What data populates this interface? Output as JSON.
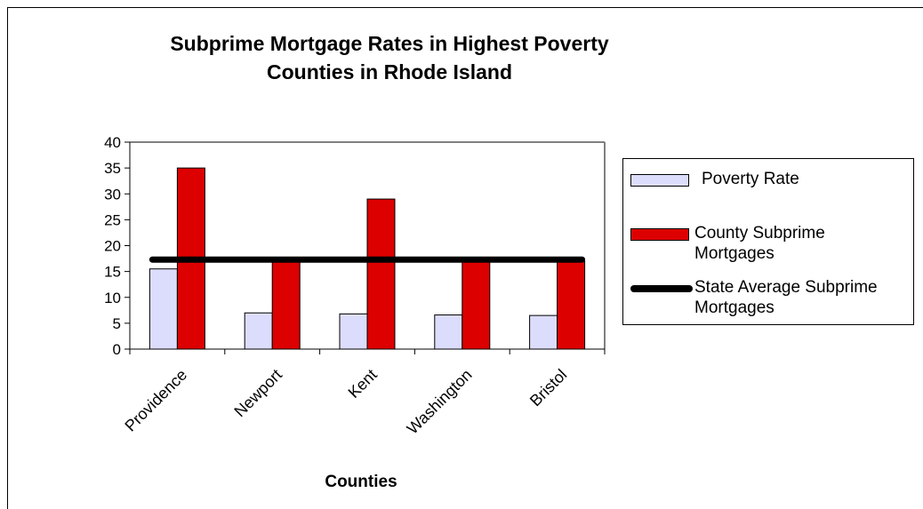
{
  "chart_data": {
    "type": "bar",
    "title_lines": [
      "Subprime Mortgage Rates in Highest Poverty",
      "Counties in Rhode Island"
    ],
    "xlabel": "Counties",
    "ylabel": "",
    "categories": [
      "Providence",
      "Newport",
      "Kent",
      "Washington",
      "Bristol"
    ],
    "ylim": [
      0,
      40
    ],
    "yticks": [
      0,
      5,
      10,
      15,
      20,
      25,
      30,
      35,
      40
    ],
    "grid": false,
    "legend_position": "right",
    "series": [
      {
        "name": "Poverty Rate",
        "type": "bar",
        "values": [
          15.5,
          7,
          6.8,
          6.6,
          6.5
        ],
        "color": "#dcdcfc"
      },
      {
        "name": "County Subprime Mortgages",
        "type": "bar",
        "values": [
          35,
          17,
          29,
          17,
          17
        ],
        "color": "#dd0000"
      },
      {
        "name": "State Average Subprime Mortgages",
        "type": "line",
        "values": [
          17.3,
          17.3,
          17.3,
          17.3,
          17.3
        ],
        "color": "#000000"
      }
    ]
  }
}
